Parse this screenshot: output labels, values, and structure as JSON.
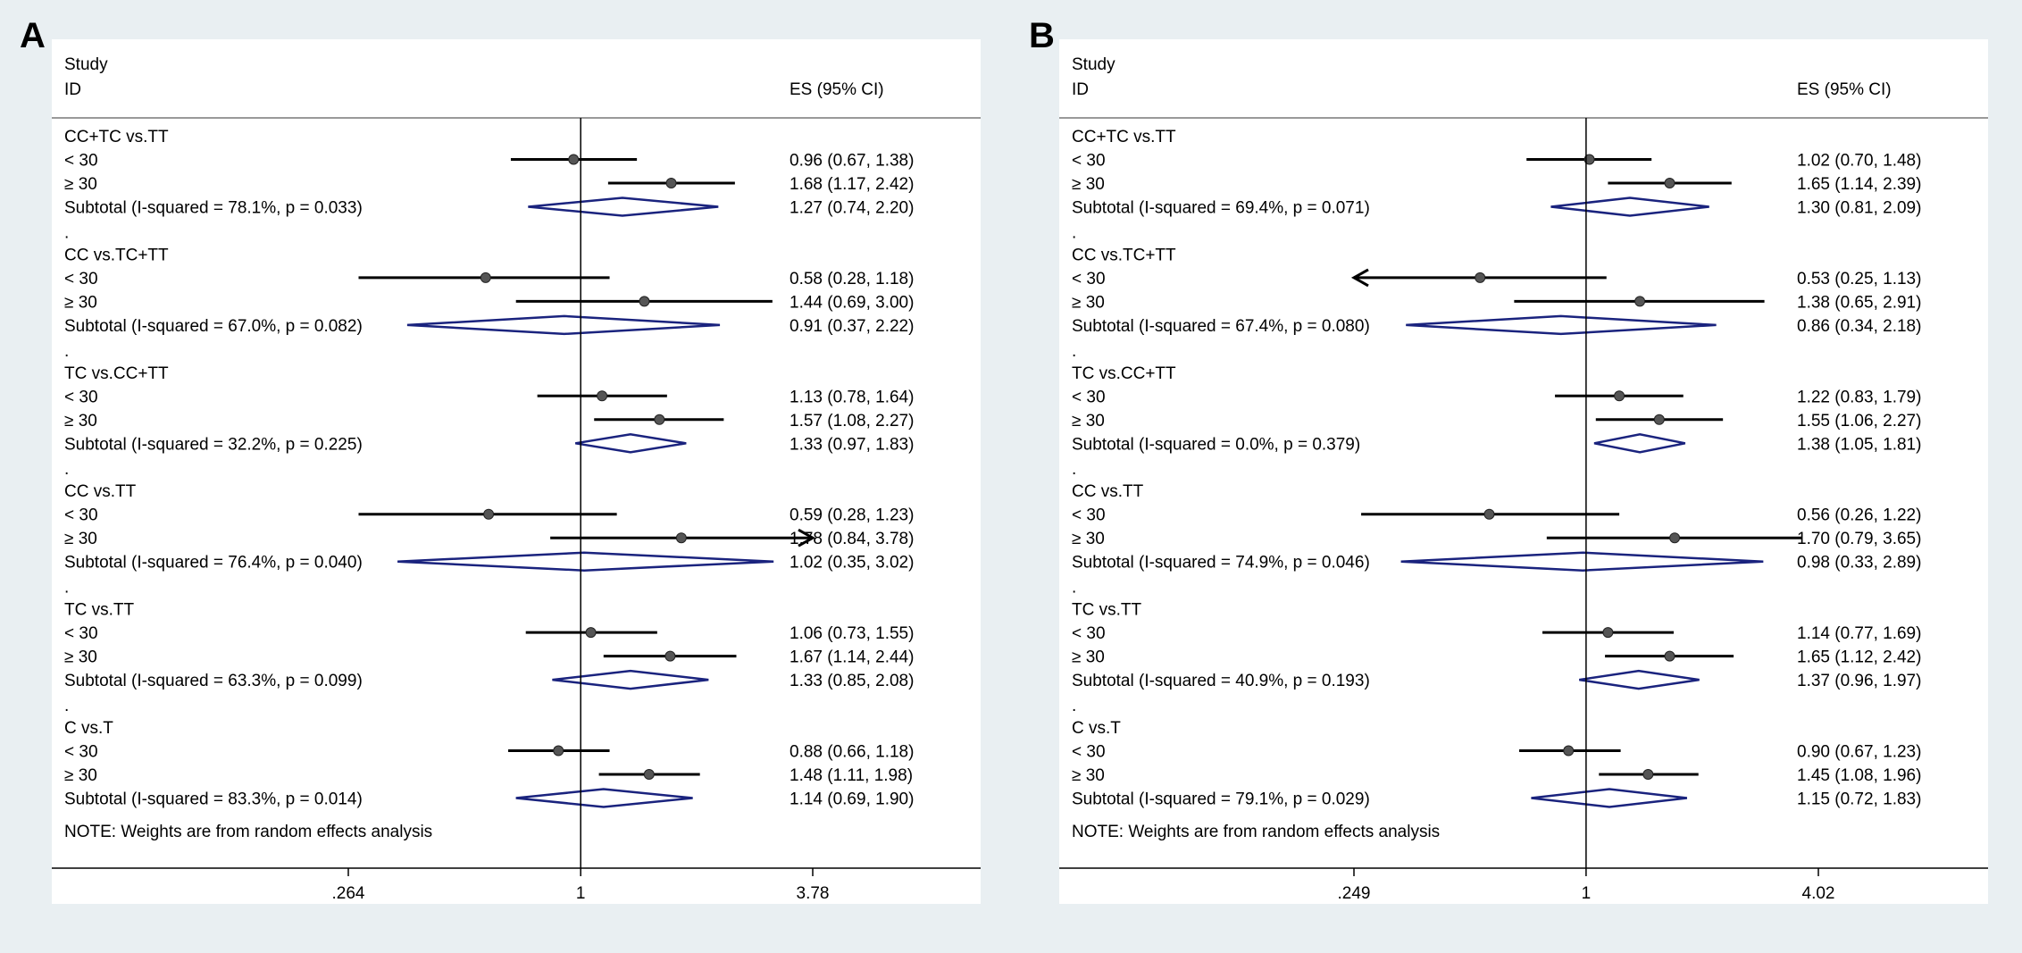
{
  "panels": [
    {
      "label": "A",
      "header_study": "Study",
      "header_id": "ID",
      "header_es": "ES (95% CI)",
      "note": "NOTE: Weights are from random effects analysis",
      "axis_ticks": [
        ".264",
        "1",
        "3.78"
      ],
      "groups": [
        {
          "name": "CC+TC vs.TT",
          "rows": [
            {
              "label": "< 30",
              "es": 0.96,
              "lo": 0.67,
              "hi": 1.38,
              "text": "0.96 (0.67, 1.38)"
            },
            {
              "label": "≥ 30",
              "es": 1.68,
              "lo": 1.17,
              "hi": 2.42,
              "text": "1.68 (1.17, 2.42)"
            }
          ],
          "subtotal": {
            "label": "Subtotal  (I-squared = 78.1%, p = 0.033)",
            "es": 1.27,
            "lo": 0.74,
            "hi": 2.2,
            "text": "1.27 (0.74, 2.20)"
          }
        },
        {
          "name": "CC vs.TC+TT",
          "rows": [
            {
              "label": "< 30",
              "es": 0.58,
              "lo": 0.28,
              "hi": 1.18,
              "text": "0.58 (0.28, 1.18)"
            },
            {
              "label": "≥ 30",
              "es": 1.44,
              "lo": 0.69,
              "hi": 3.0,
              "text": "1.44 (0.69, 3.00)"
            }
          ],
          "subtotal": {
            "label": "Subtotal  (I-squared = 67.0%, p = 0.082)",
            "es": 0.91,
            "lo": 0.37,
            "hi": 2.22,
            "text": "0.91 (0.37, 2.22)"
          }
        },
        {
          "name": "TC vs.CC+TT",
          "rows": [
            {
              "label": "< 30",
              "es": 1.13,
              "lo": 0.78,
              "hi": 1.64,
              "text": "1.13 (0.78, 1.64)"
            },
            {
              "label": "≥ 30",
              "es": 1.57,
              "lo": 1.08,
              "hi": 2.27,
              "text": "1.57 (1.08, 2.27)"
            }
          ],
          "subtotal": {
            "label": "Subtotal  (I-squared = 32.2%, p = 0.225)",
            "es": 1.33,
            "lo": 0.97,
            "hi": 1.83,
            "text": "1.33 (0.97, 1.83)"
          }
        },
        {
          "name": "CC vs.TT",
          "rows": [
            {
              "label": "< 30",
              "es": 0.59,
              "lo": 0.28,
              "hi": 1.23,
              "text": "0.59 (0.28, 1.23)"
            },
            {
              "label": "≥ 30",
              "es": 1.78,
              "lo": 0.84,
              "hi": 3.78,
              "text": "1.78 (0.84, 3.78)",
              "arrow_right": true
            }
          ],
          "subtotal": {
            "label": "Subtotal  (I-squared = 76.4%, p = 0.040)",
            "es": 1.02,
            "lo": 0.35,
            "hi": 3.02,
            "text": "1.02 (0.35, 3.02)"
          }
        },
        {
          "name": "TC vs.TT",
          "rows": [
            {
              "label": "< 30",
              "es": 1.06,
              "lo": 0.73,
              "hi": 1.55,
              "text": "1.06 (0.73, 1.55)"
            },
            {
              "label": "≥ 30",
              "es": 1.67,
              "lo": 1.14,
              "hi": 2.44,
              "text": "1.67 (1.14, 2.44)"
            }
          ],
          "subtotal": {
            "label": "Subtotal  (I-squared = 63.3%, p = 0.099)",
            "es": 1.33,
            "lo": 0.85,
            "hi": 2.08,
            "text": "1.33 (0.85, 2.08)"
          }
        },
        {
          "name": "C vs.T",
          "rows": [
            {
              "label": "< 30",
              "es": 0.88,
              "lo": 0.66,
              "hi": 1.18,
              "text": "0.88 (0.66, 1.18)"
            },
            {
              "label": "≥ 30",
              "es": 1.48,
              "lo": 1.11,
              "hi": 1.98,
              "text": "1.48 (1.11, 1.98)"
            }
          ],
          "subtotal": {
            "label": "Subtotal  (I-squared = 83.3%, p = 0.014)",
            "es": 1.14,
            "lo": 0.69,
            "hi": 1.9,
            "text": "1.14 (0.69, 1.90)"
          }
        }
      ]
    },
    {
      "label": "B",
      "header_study": "Study",
      "header_id": "ID",
      "header_es": "ES (95% CI)",
      "note": "NOTE: Weights are from random effects analysis",
      "axis_ticks": [
        ".249",
        "1",
        "4.02"
      ],
      "groups": [
        {
          "name": "CC+TC vs.TT",
          "rows": [
            {
              "label": "< 30",
              "es": 1.02,
              "lo": 0.7,
              "hi": 1.48,
              "text": "1.02 (0.70, 1.48)"
            },
            {
              "label": "≥ 30",
              "es": 1.65,
              "lo": 1.14,
              "hi": 2.39,
              "text": "1.65 (1.14, 2.39)"
            }
          ],
          "subtotal": {
            "label": "Subtotal  (I-squared = 69.4%, p = 0.071)",
            "es": 1.3,
            "lo": 0.81,
            "hi": 2.09,
            "text": "1.30 (0.81, 2.09)"
          }
        },
        {
          "name": "CC vs.TC+TT",
          "rows": [
            {
              "label": "< 30",
              "es": 0.53,
              "lo": 0.25,
              "hi": 1.13,
              "text": "0.53 (0.25, 1.13)",
              "arrow_left": true
            },
            {
              "label": "≥ 30",
              "es": 1.38,
              "lo": 0.65,
              "hi": 2.91,
              "text": "1.38 (0.65, 2.91)"
            }
          ],
          "subtotal": {
            "label": "Subtotal  (I-squared = 67.4%, p = 0.080)",
            "es": 0.86,
            "lo": 0.34,
            "hi": 2.18,
            "text": "0.86 (0.34, 2.18)"
          }
        },
        {
          "name": "TC vs.CC+TT",
          "rows": [
            {
              "label": "< 30",
              "es": 1.22,
              "lo": 0.83,
              "hi": 1.79,
              "text": "1.22 (0.83, 1.79)"
            },
            {
              "label": "≥ 30",
              "es": 1.55,
              "lo": 1.06,
              "hi": 2.27,
              "text": "1.55 (1.06, 2.27)"
            }
          ],
          "subtotal": {
            "label": "Subtotal  (I-squared = 0.0%, p = 0.379)",
            "es": 1.38,
            "lo": 1.05,
            "hi": 1.81,
            "text": "1.38 (1.05, 1.81)"
          }
        },
        {
          "name": "CC vs.TT",
          "rows": [
            {
              "label": "< 30",
              "es": 0.56,
              "lo": 0.26,
              "hi": 1.22,
              "text": "0.56 (0.26, 1.22)"
            },
            {
              "label": "≥ 30",
              "es": 1.7,
              "lo": 0.79,
              "hi": 3.65,
              "text": "1.70 (0.79, 3.65)"
            }
          ],
          "subtotal": {
            "label": "Subtotal  (I-squared = 74.9%, p = 0.046)",
            "es": 0.98,
            "lo": 0.33,
            "hi": 2.89,
            "text": "0.98 (0.33, 2.89)"
          }
        },
        {
          "name": "TC vs.TT",
          "rows": [
            {
              "label": "< 30",
              "es": 1.14,
              "lo": 0.77,
              "hi": 1.69,
              "text": "1.14 (0.77, 1.69)"
            },
            {
              "label": "≥ 30",
              "es": 1.65,
              "lo": 1.12,
              "hi": 2.42,
              "text": "1.65 (1.12, 2.42)"
            }
          ],
          "subtotal": {
            "label": "Subtotal  (I-squared = 40.9%, p = 0.193)",
            "es": 1.37,
            "lo": 0.96,
            "hi": 1.97,
            "text": "1.37 (0.96, 1.97)"
          }
        },
        {
          "name": "C vs.T",
          "rows": [
            {
              "label": "< 30",
              "es": 0.9,
              "lo": 0.67,
              "hi": 1.23,
              "text": "0.90 (0.67, 1.23)"
            },
            {
              "label": "≥ 30",
              "es": 1.45,
              "lo": 1.08,
              "hi": 1.96,
              "text": "1.45 (1.08, 1.96)"
            }
          ],
          "subtotal": {
            "label": "Subtotal  (I-squared = 79.1%, p = 0.029)",
            "es": 1.15,
            "lo": 0.72,
            "hi": 1.83,
            "text": "1.15 (0.72, 1.83)"
          }
        }
      ]
    }
  ],
  "chart_data": [
    {
      "type": "forest",
      "title": "A",
      "scale": "log",
      "xlim": [
        0.264,
        3.78
      ],
      "reference_line": 1,
      "xticks": [
        0.264,
        1,
        3.78
      ],
      "series": [
        {
          "name": "CC+TC vs.TT",
          "lt30": [
            0.96,
            0.67,
            1.38
          ],
          "ge30": [
            1.68,
            1.17,
            2.42
          ],
          "subtotal": [
            1.27,
            0.74,
            2.2
          ]
        },
        {
          "name": "CC vs.TC+TT",
          "lt30": [
            0.58,
            0.28,
            1.18
          ],
          "ge30": [
            1.44,
            0.69,
            3.0
          ],
          "subtotal": [
            0.91,
            0.37,
            2.22
          ]
        },
        {
          "name": "TC vs.CC+TT",
          "lt30": [
            1.13,
            0.78,
            1.64
          ],
          "ge30": [
            1.57,
            1.08,
            2.27
          ],
          "subtotal": [
            1.33,
            0.97,
            1.83
          ]
        },
        {
          "name": "CC vs.TT",
          "lt30": [
            0.59,
            0.28,
            1.23
          ],
          "ge30": [
            1.78,
            0.84,
            3.78
          ],
          "subtotal": [
            1.02,
            0.35,
            3.02
          ]
        },
        {
          "name": "TC vs.TT",
          "lt30": [
            1.06,
            0.73,
            1.55
          ],
          "ge30": [
            1.67,
            1.14,
            2.44
          ],
          "subtotal": [
            1.33,
            0.85,
            2.08
          ]
        },
        {
          "name": "C vs.T",
          "lt30": [
            0.88,
            0.66,
            1.18
          ],
          "ge30": [
            1.48,
            1.11,
            1.98
          ],
          "subtotal": [
            1.14,
            0.69,
            1.9
          ]
        }
      ]
    },
    {
      "type": "forest",
      "title": "B",
      "scale": "log",
      "xlim": [
        0.249,
        4.02
      ],
      "reference_line": 1,
      "xticks": [
        0.249,
        1,
        4.02
      ],
      "series": [
        {
          "name": "CC+TC vs.TT",
          "lt30": [
            1.02,
            0.7,
            1.48
          ],
          "ge30": [
            1.65,
            1.14,
            2.39
          ],
          "subtotal": [
            1.3,
            0.81,
            2.09
          ]
        },
        {
          "name": "CC vs.TC+TT",
          "lt30": [
            0.53,
            0.25,
            1.13
          ],
          "ge30": [
            1.38,
            0.65,
            2.91
          ],
          "subtotal": [
            0.86,
            0.34,
            2.18
          ]
        },
        {
          "name": "TC vs.CC+TT",
          "lt30": [
            1.22,
            0.83,
            1.79
          ],
          "ge30": [
            1.55,
            1.06,
            2.27
          ],
          "subtotal": [
            1.38,
            1.05,
            1.81
          ]
        },
        {
          "name": "CC vs.TT",
          "lt30": [
            0.56,
            0.26,
            1.22
          ],
          "ge30": [
            1.7,
            0.79,
            3.65
          ],
          "subtotal": [
            0.98,
            0.33,
            2.89
          ]
        },
        {
          "name": "TC vs.TT",
          "lt30": [
            1.14,
            0.77,
            1.69
          ],
          "ge30": [
            1.65,
            1.12,
            2.42
          ],
          "subtotal": [
            1.37,
            0.96,
            1.97
          ]
        },
        {
          "name": "C vs.T",
          "lt30": [
            0.9,
            0.67,
            1.23
          ],
          "ge30": [
            1.45,
            1.08,
            1.96
          ],
          "subtotal": [
            1.15,
            0.72,
            1.83
          ]
        }
      ]
    }
  ],
  "colors": {
    "diamond": "#1a237e",
    "line": "#000000",
    "background": "#e9eff2",
    "panel": "#ffffff",
    "marker": "#555555"
  }
}
